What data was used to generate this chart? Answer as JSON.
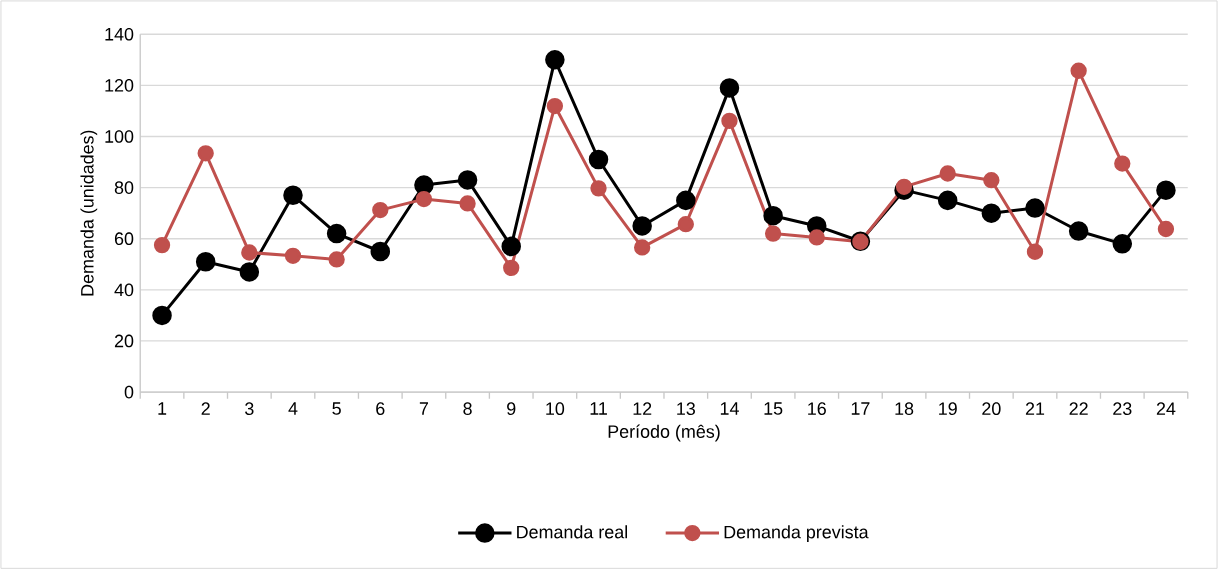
{
  "chart_data": {
    "type": "line",
    "xlabel": "Período (mês)",
    "ylabel": "Demanda (unidades)",
    "categories": [
      "1",
      "2",
      "3",
      "4",
      "5",
      "6",
      "7",
      "8",
      "9",
      "10",
      "11",
      "12",
      "13",
      "14",
      "15",
      "16",
      "17",
      "18",
      "19",
      "20",
      "21",
      "22",
      "23",
      "24"
    ],
    "series": [
      {
        "name": "Demanda real",
        "color": "#000000",
        "values": [
          30,
          51,
          47,
          77,
          62,
          55,
          81,
          83,
          57,
          130,
          91,
          65,
          75,
          119,
          69,
          65,
          59,
          79,
          75,
          70,
          72,
          63,
          58,
          79
        ]
      },
      {
        "name": "Demanda prevista",
        "color": "#c0504d",
        "values": [
          57.5,
          93.4,
          54.6,
          53.3,
          51.9,
          71.2,
          75.5,
          73.8,
          48.6,
          111.9,
          79.7,
          56.6,
          65.7,
          106.1,
          62,
          60.5,
          58.8,
          80.3,
          85.5,
          82.9,
          54.9,
          125.7,
          89.4,
          63.8
        ]
      }
    ],
    "ylim": [
      0,
      140
    ],
    "yticks": [
      0,
      20,
      40,
      60,
      80,
      100,
      120,
      140
    ],
    "grid": "y",
    "legend": "bottom",
    "marker": "circle",
    "line_style": "solid"
  }
}
